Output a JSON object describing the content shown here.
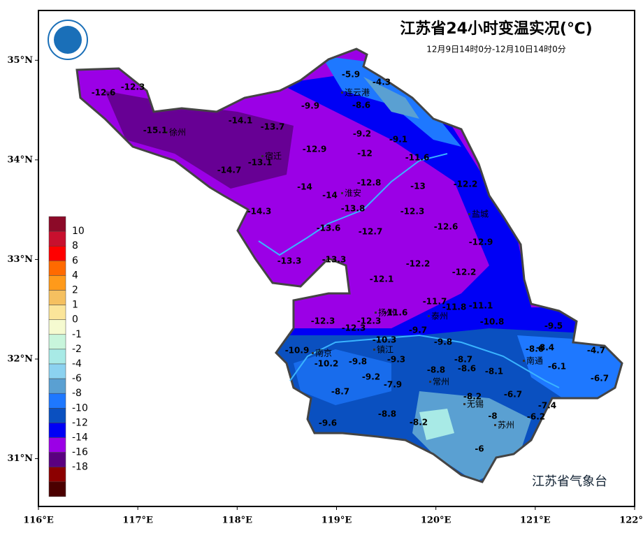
{
  "title": "江苏省24小时变温实况(℃)",
  "subtitle": "12月9日14时0分-12月10日14时0分",
  "footer": "江苏省气象台",
  "xlim": [
    116,
    122
  ],
  "ylim": [
    30.52,
    35.5
  ],
  "xticks": [
    {
      "value": 116,
      "label": "116°E"
    },
    {
      "value": 117,
      "label": "117°E"
    },
    {
      "value": 118,
      "label": "118°E"
    },
    {
      "value": 119,
      "label": "119°E"
    },
    {
      "value": 120,
      "label": "120°E"
    },
    {
      "value": 121,
      "label": "121°E"
    },
    {
      "value": 122,
      "label": "122°E"
    }
  ],
  "yticks": [
    {
      "value": 31,
      "label": "31°N"
    },
    {
      "value": 32,
      "label": "32°N"
    },
    {
      "value": 33,
      "label": "33°N"
    },
    {
      "value": 34,
      "label": "34°N"
    },
    {
      "value": 35,
      "label": "35°N"
    }
  ],
  "legend": {
    "ticks": [
      10,
      8,
      6,
      4,
      2,
      1,
      0,
      -1,
      -2,
      -4,
      -6,
      -8,
      -10,
      -12,
      -14,
      -16,
      -18
    ],
    "colors": [
      "#8c0a28",
      "#c8102e",
      "#ff0000",
      "#ff6a00",
      "#ff9a1a",
      "#f5c060",
      "#fbe59a",
      "#f5fad0",
      "#c8f5dc",
      "#a8eae6",
      "#8cd2f0",
      "#5aa0d2",
      "#1e78ff",
      "#0a50c0",
      "#0000f5",
      "#9b00e6",
      "#5a0080",
      "#8c0000",
      "#4b0000"
    ]
  },
  "cities": [
    "连云港",
    "宿迁",
    "徐州",
    "淮安",
    "盐城",
    "扬州",
    "泰州",
    "南京",
    "镇江",
    "南通",
    "常州",
    "无锡",
    "苏州"
  ],
  "stations": [
    -12.6,
    -12.3,
    -15.1,
    -14.1,
    -13.7,
    -13.1,
    -14.7,
    -12.9,
    -5.9,
    -4.3,
    -9.9,
    -8.6,
    -9.2,
    -9.1,
    -12.0,
    -11.6,
    -14.0,
    -14.0,
    -12.8,
    -13.0,
    -12.2,
    -14.3,
    -13.8,
    -12.3,
    -13.6,
    -12.7,
    -12.6,
    -12.9,
    -13.3,
    -13.3,
    -12.2,
    -12.2,
    -12.1,
    -11.7,
    -11.8,
    -11.1,
    -11.6,
    -12.3,
    -12.3,
    -12.3,
    -9.7,
    -10.8,
    -9.5,
    -10.3,
    -9.8,
    -10.9,
    -8.6,
    -8.4,
    -4.7,
    -10.2,
    -9.8,
    -9.3,
    -8.7,
    -8.8,
    -8.6,
    -8.1,
    -6.1,
    -6.7,
    -9.2,
    -7.9,
    -8.7,
    -6.7,
    -8.2,
    -7.4,
    -8.8,
    -8.0,
    -6.2,
    -9.6,
    -8.2,
    -6.0
  ]
}
